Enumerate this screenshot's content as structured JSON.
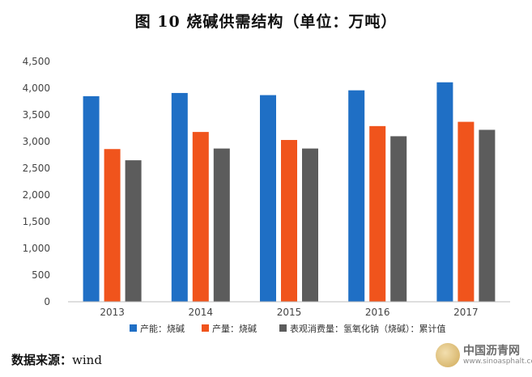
{
  "chart_data": {
    "type": "bar",
    "title": "图 10   烧碱供需结构（单位：万吨）",
    "categories": [
      "2013",
      "2014",
      "2015",
      "2016",
      "2017"
    ],
    "series": [
      {
        "name": "产能：烧碱",
        "color": "#1f6fc5",
        "values": [
          3850,
          3910,
          3870,
          3960,
          4110
        ]
      },
      {
        "name": "产量：烧碱",
        "color": "#f0541c",
        "values": [
          2860,
          3180,
          3030,
          3290,
          3370
        ]
      },
      {
        "name": "表观消费量：氢氧化钠（烧碱）：累计值",
        "color": "#5c5c5c",
        "values": [
          2650,
          2870,
          2870,
          3100,
          3220
        ]
      }
    ],
    "yticks": [
      "0",
      "500",
      "1,000",
      "1,500",
      "2,000",
      "2,500",
      "3,000",
      "3,500",
      "4,000",
      "4,500"
    ],
    "ylim": [
      0,
      4500
    ],
    "xlabel": "",
    "ylabel": "",
    "legend_position": "bottom"
  },
  "source": {
    "label": "数据来源：",
    "value": "wind"
  },
  "watermark": {
    "name": "中国沥青网",
    "url": "www.sinoasphalt.com"
  }
}
